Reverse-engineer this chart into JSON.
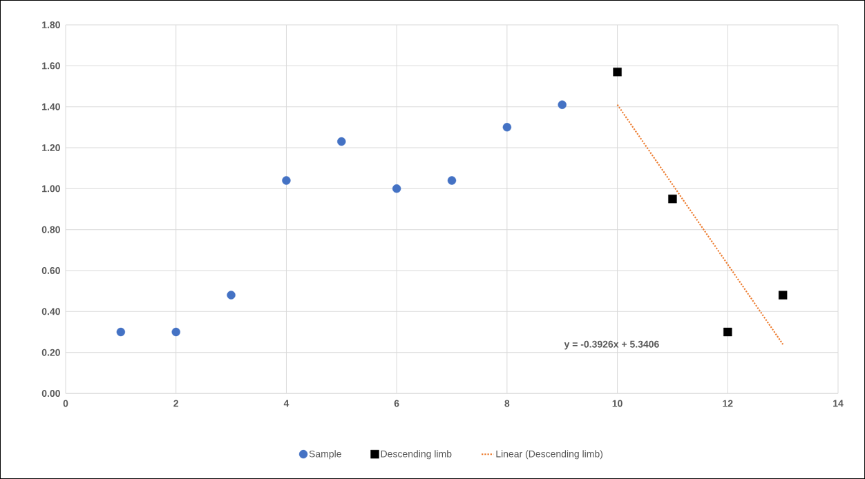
{
  "chart_data": {
    "type": "scatter",
    "series": [
      {
        "name": "Sample",
        "color": "#4472c4",
        "marker": "circle",
        "x": [
          1,
          2,
          3,
          4,
          5,
          6,
          7,
          8,
          9
        ],
        "values": [
          0.3,
          0.3,
          0.48,
          1.04,
          1.23,
          1.0,
          1.04,
          1.3,
          1.41
        ]
      },
      {
        "name": "Descending limb",
        "color": "#000000",
        "marker": "square",
        "x": [
          10,
          11,
          12,
          13
        ],
        "values": [
          1.57,
          0.95,
          0.3,
          0.48
        ]
      },
      {
        "name": "Linear (Descending limb)",
        "type": "line",
        "color": "#ed7d31",
        "marker": "none",
        "line_style": "dotted",
        "x": [
          10,
          13
        ],
        "values": [
          1.41,
          0.24
        ]
      }
    ],
    "xlim": [
      0,
      14
    ],
    "xticks": [
      0,
      2,
      4,
      6,
      8,
      10,
      12,
      14
    ],
    "ylim": [
      0,
      1.8
    ],
    "yticks": [
      {
        "value": 0,
        "label": "0.00"
      },
      {
        "value": 0.2,
        "label": "0.20"
      },
      {
        "value": 0.4,
        "label": "0.40"
      },
      {
        "value": 0.6,
        "label": "0.60"
      },
      {
        "value": 0.8,
        "label": "0.80"
      },
      {
        "value": 1.0,
        "label": "1.00"
      },
      {
        "value": 1.2,
        "label": "1.20"
      },
      {
        "value": 1.4,
        "label": "1.40"
      },
      {
        "value": 1.6,
        "label": "1.60"
      },
      {
        "value": 1.8,
        "label": "1.80"
      }
    ],
    "grid": true,
    "legend": "bottom",
    "annotations": [
      "y = -0.3926x + 5.3406"
    ]
  }
}
